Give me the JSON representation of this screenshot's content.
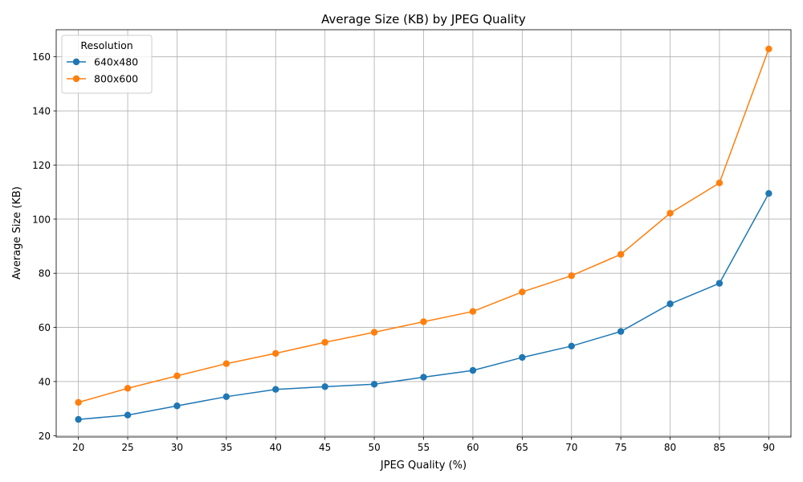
{
  "chart_data": {
    "type": "line",
    "title": "Average Size (KB) by JPEG Quality",
    "xlabel": "JPEG Quality (%)",
    "ylabel": "Average Size (KB)",
    "x": [
      20,
      25,
      30,
      35,
      40,
      45,
      50,
      55,
      60,
      65,
      70,
      75,
      80,
      85,
      90
    ],
    "xlim": [
      17.75,
      92.25
    ],
    "ylim": [
      19.5,
      170
    ],
    "yticks": [
      20,
      40,
      60,
      80,
      100,
      120,
      140,
      160
    ],
    "grid": true,
    "legend": {
      "title": "Resolution",
      "placement": "top-left"
    },
    "series": [
      {
        "name": "640x480",
        "color": "#1f77b4",
        "marker": "circle",
        "values": [
          26.0,
          27.6,
          31.0,
          34.4,
          37.1,
          38.1,
          39.0,
          41.6,
          44.1,
          48.9,
          53.1,
          58.5,
          68.7,
          76.3,
          109.5
        ]
      },
      {
        "name": "800x600",
        "color": "#ff7f0e",
        "marker": "circle",
        "values": [
          32.3,
          37.5,
          42.1,
          46.6,
          50.4,
          54.5,
          58.2,
          62.1,
          65.9,
          73.1,
          79.1,
          87.0,
          102.2,
          113.4,
          162.9
        ]
      }
    ]
  }
}
